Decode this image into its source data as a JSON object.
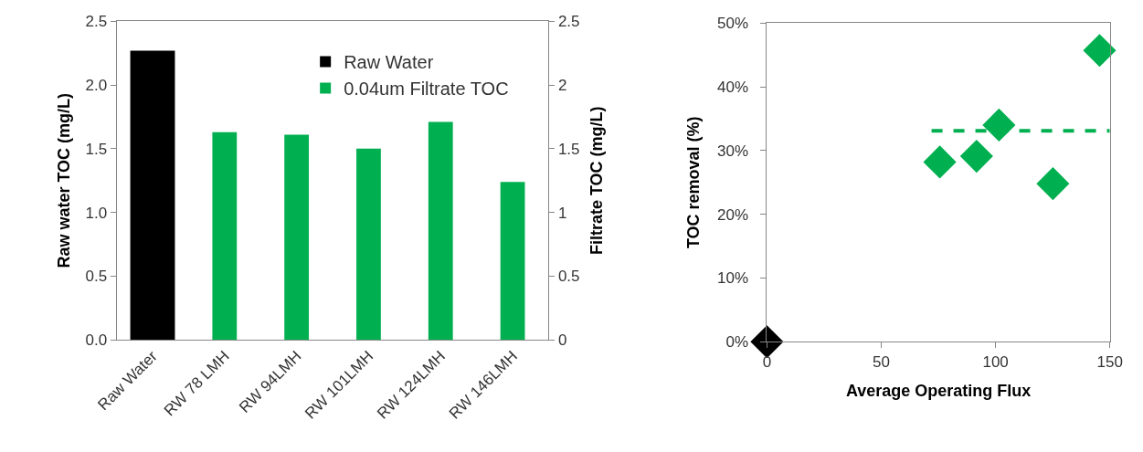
{
  "chart_data": [
    {
      "type": "bar",
      "categories": [
        "Raw Water",
        "RW 78 LMH",
        "RW 94LMH",
        "RW 101LMH",
        "RW 124LMH",
        "RW 146LMH"
      ],
      "ylabel": "Raw water TOC (mg/L)",
      "y2label": "Filtrate TOC (mg/L)",
      "ylim": [
        0,
        2.5
      ],
      "yticks": [
        {
          "value": 0,
          "label": "0.0"
        },
        {
          "value": 0.5,
          "label": "0.5"
        },
        {
          "value": 1,
          "label": "1.0"
        },
        {
          "value": 1.5,
          "label": "1.5"
        },
        {
          "value": 2,
          "label": "2.0"
        },
        {
          "value": 2.5,
          "label": "2.5"
        }
      ],
      "y2lim": [
        0,
        2.5
      ],
      "y2ticks": [
        0,
        0.5,
        1,
        1.5,
        2,
        2.5
      ],
      "legend": "top right",
      "series": [
        {
          "name": "Raw Water",
          "color": "#000000",
          "values": [
            2.27,
            null,
            null,
            null,
            null,
            null
          ]
        },
        {
          "name": "0.04um Filtrate TOC",
          "color": "#00b050",
          "axis": "y2",
          "values": [
            null,
            1.63,
            1.61,
            1.5,
            1.71,
            1.24
          ]
        }
      ]
    },
    {
      "type": "scatter",
      "xlabel": "Average Operating Flux",
      "ylabel": "TOC removal (%)",
      "xlim": [
        0,
        150
      ],
      "xticks": [
        0,
        50,
        100,
        150
      ],
      "ylim": [
        0,
        50
      ],
      "yticks": [
        {
          "value": 0,
          "label": "0%"
        },
        {
          "value": 10,
          "label": "10%"
        },
        {
          "value": 20,
          "label": "20%"
        },
        {
          "value": 30,
          "label": "30%"
        },
        {
          "value": 40,
          "label": "40%"
        },
        {
          "value": 50,
          "label": "50%"
        }
      ],
      "marker": "diamond",
      "series": [
        {
          "color": "#000000",
          "x": [
            0
          ],
          "values": [
            0
          ]
        },
        {
          "color": "#00b050",
          "x": [
            75.6
          ],
          "values": [
            28.2
          ]
        },
        {
          "color": "#00b050",
          "x": [
            91.7,
            101.5,
            125.1,
            145.5
          ],
          "values": [
            29.1,
            34.0,
            24.8,
            45.7
          ]
        },
        {
          "type": "line",
          "color": "#00b050",
          "line_style": "dashed",
          "marker": "none",
          "x": [
            72,
            150
          ],
          "values": [
            33.1,
            33.1
          ]
        }
      ]
    }
  ]
}
